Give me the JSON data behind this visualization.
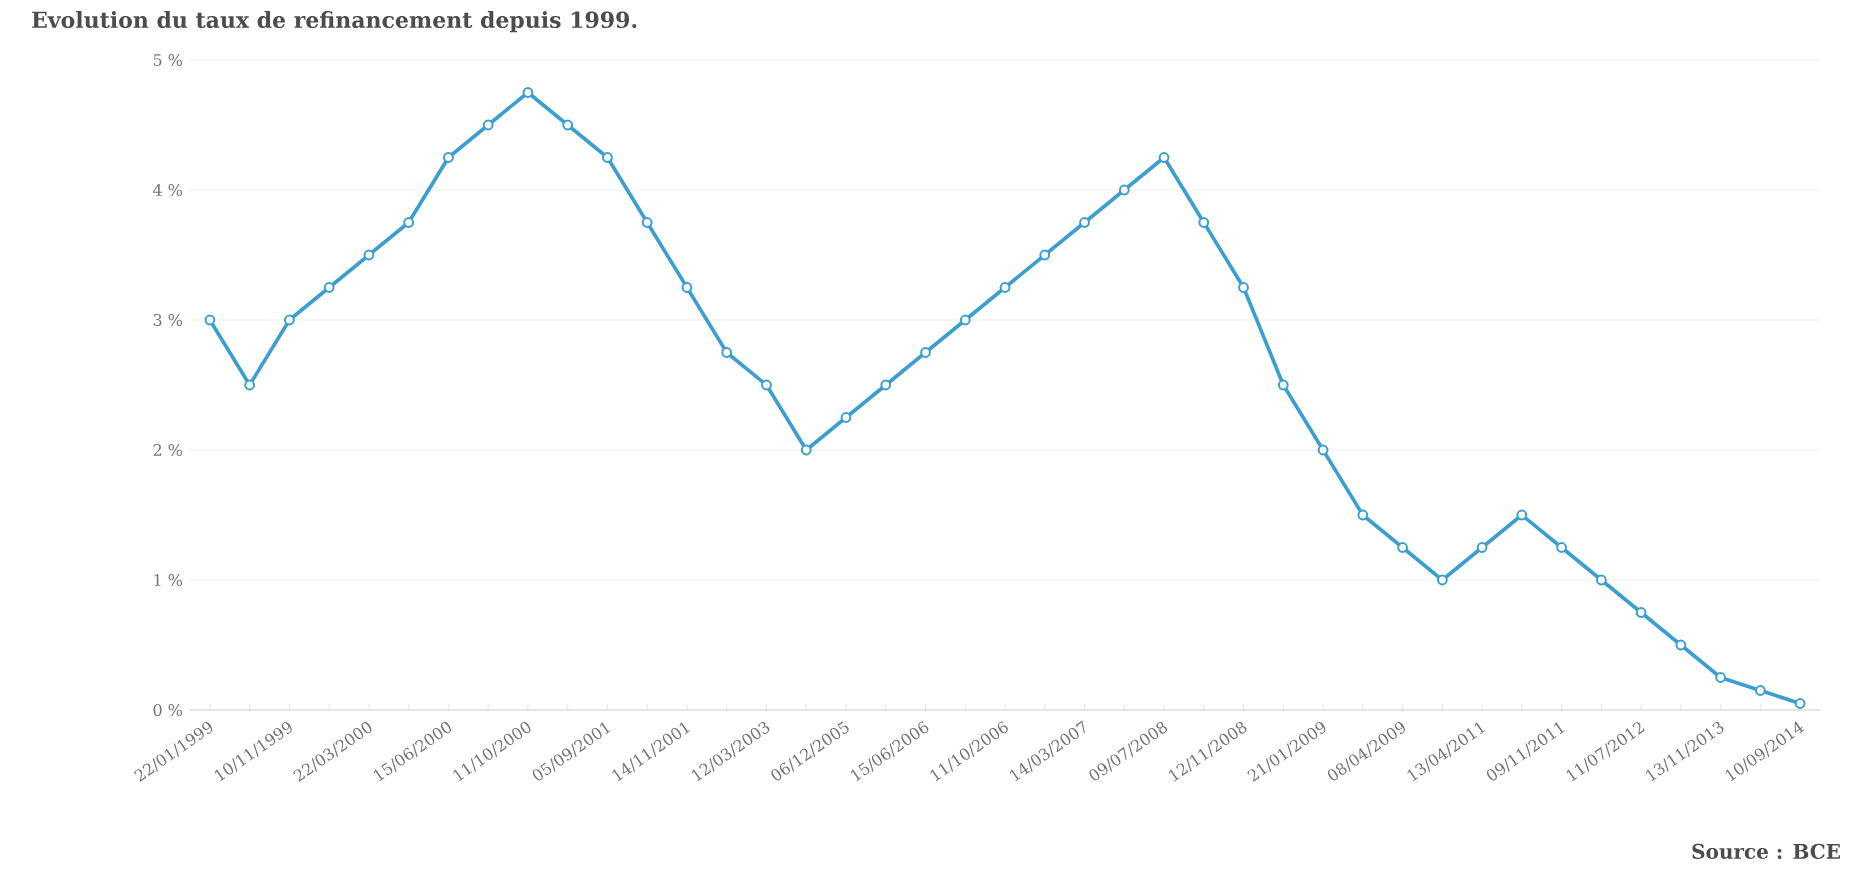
{
  "chart_data": {
    "type": "line",
    "title": "Evolution du taux de refinancement depuis 1999.",
    "categories": [
      "22/01/1999",
      null,
      "10/11/1999",
      null,
      "22/03/2000",
      null,
      "15/06/2000",
      null,
      "11/10/2000",
      null,
      "05/09/2001",
      null,
      "14/11/2001",
      null,
      "12/03/2003",
      null,
      "06/12/2005",
      null,
      "15/06/2006",
      null,
      "11/10/2006",
      null,
      "14/03/2007",
      null,
      "09/07/2008",
      null,
      "12/11/2008",
      null,
      "21/01/2009",
      null,
      "08/04/2009",
      null,
      "13/04/2011",
      null,
      "09/11/2011",
      null,
      "11/07/2012",
      null,
      "13/11/2013",
      null,
      "10/09/2014"
    ],
    "values": [
      3.0,
      2.5,
      3.0,
      3.25,
      3.5,
      3.75,
      4.25,
      4.5,
      4.75,
      4.5,
      4.25,
      3.75,
      3.25,
      2.75,
      2.5,
      2.0,
      2.25,
      2.5,
      2.75,
      3.0,
      3.25,
      3.5,
      3.75,
      4.0,
      4.25,
      3.75,
      3.25,
      2.5,
      2.0,
      1.5,
      1.25,
      1.0,
      1.25,
      1.5,
      1.25,
      1.0,
      0.75,
      0.5,
      0.25,
      0.15,
      0.05
    ],
    "color": "#3a9fd0",
    "marker": "circle",
    "line_style": "solid",
    "grid": "y",
    "ylim": [
      0,
      5
    ],
    "yticks": [
      {
        "value": 0,
        "label": "0 %"
      },
      {
        "value": 1,
        "label": "1 %"
      },
      {
        "value": 2,
        "label": "2 %"
      },
      {
        "value": 3,
        "label": "3 %"
      },
      {
        "value": 4,
        "label": "4 %"
      },
      {
        "value": 5,
        "label": "5 %"
      }
    ],
    "annotations": [
      "Source : BCE"
    ]
  }
}
